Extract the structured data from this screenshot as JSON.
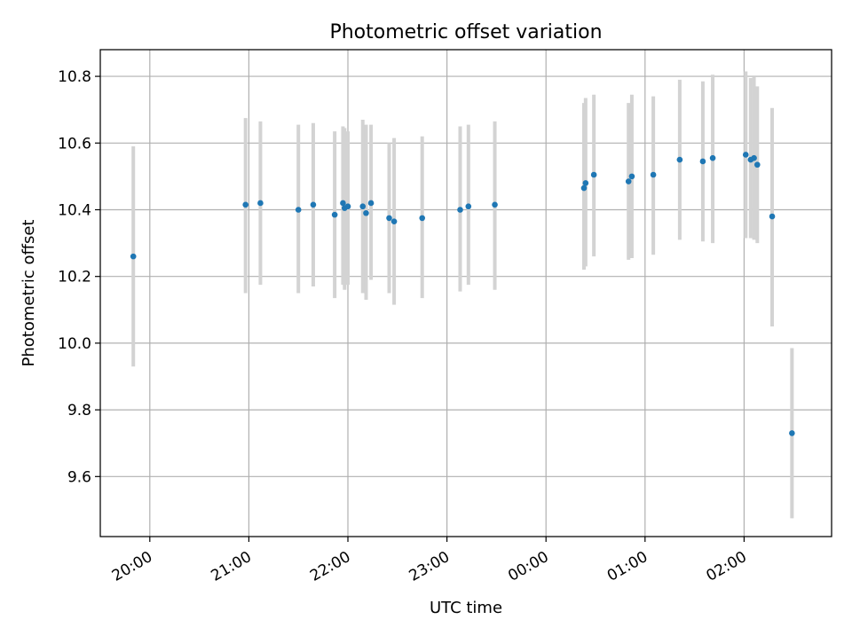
{
  "chart_data": {
    "type": "scatter",
    "title": "Photometric offset variation",
    "xlabel": "UTC time",
    "ylabel": "Photometric offset",
    "x_ticks": [
      "20:00",
      "21:00",
      "22:00",
      "23:00",
      "00:00",
      "01:00",
      "02:00"
    ],
    "y_ticks": [
      "9.6",
      "9.8",
      "10.0",
      "10.2",
      "10.4",
      "10.6",
      "10.8"
    ],
    "xlim": [
      "19:30",
      "02:53"
    ],
    "ylim": [
      9.42,
      10.88
    ],
    "grid": true,
    "x_unit": "hh:mm UTC",
    "colors": {
      "point": "#1f77b4",
      "errorbar": "#d3d3d3",
      "grid": "#b0b0b0"
    },
    "series": [
      {
        "points": [
          {
            "x": "19:50",
            "y": 10.26,
            "err_low": 9.93,
            "err_high": 10.59
          },
          {
            "x": "20:58",
            "y": 10.415,
            "err_low": 10.15,
            "err_high": 10.675
          },
          {
            "x": "21:07",
            "y": 10.42,
            "err_low": 10.175,
            "err_high": 10.665
          },
          {
            "x": "21:30",
            "y": 10.4,
            "err_low": 10.15,
            "err_high": 10.655
          },
          {
            "x": "21:39",
            "y": 10.415,
            "err_low": 10.17,
            "err_high": 10.66
          },
          {
            "x": "21:52",
            "y": 10.385,
            "err_low": 10.135,
            "err_high": 10.635
          },
          {
            "x": "21:57",
            "y": 10.42,
            "err_low": 10.175,
            "err_high": 10.65
          },
          {
            "x": "21:58",
            "y": 10.405,
            "err_low": 10.16,
            "err_high": 10.645
          },
          {
            "x": "22:00",
            "y": 10.41,
            "err_low": 10.175,
            "err_high": 10.635
          },
          {
            "x": "22:09",
            "y": 10.41,
            "err_low": 10.15,
            "err_high": 10.67
          },
          {
            "x": "22:11",
            "y": 10.39,
            "err_low": 10.13,
            "err_high": 10.655
          },
          {
            "x": "22:14",
            "y": 10.42,
            "err_low": 10.19,
            "err_high": 10.655
          },
          {
            "x": "22:25",
            "y": 10.375,
            "err_low": 10.15,
            "err_high": 10.6
          },
          {
            "x": "22:28",
            "y": 10.365,
            "err_low": 10.115,
            "err_high": 10.615
          },
          {
            "x": "22:45",
            "y": 10.375,
            "err_low": 10.135,
            "err_high": 10.62
          },
          {
            "x": "23:08",
            "y": 10.4,
            "err_low": 10.155,
            "err_high": 10.65
          },
          {
            "x": "23:13",
            "y": 10.41,
            "err_low": 10.175,
            "err_high": 10.655
          },
          {
            "x": "23:29",
            "y": 10.415,
            "err_low": 10.16,
            "err_high": 10.665
          },
          {
            "x": "00:23",
            "y": 10.465,
            "err_low": 10.22,
            "err_high": 10.72
          },
          {
            "x": "00:24",
            "y": 10.48,
            "err_low": 10.23,
            "err_high": 10.735
          },
          {
            "x": "00:29",
            "y": 10.505,
            "err_low": 10.26,
            "err_high": 10.745
          },
          {
            "x": "00:50",
            "y": 10.485,
            "err_low": 10.25,
            "err_high": 10.72
          },
          {
            "x": "00:52",
            "y": 10.5,
            "err_low": 10.255,
            "err_high": 10.745
          },
          {
            "x": "01:05",
            "y": 10.505,
            "err_low": 10.265,
            "err_high": 10.74
          },
          {
            "x": "01:21",
            "y": 10.55,
            "err_low": 10.31,
            "err_high": 10.79
          },
          {
            "x": "01:35",
            "y": 10.545,
            "err_low": 10.305,
            "err_high": 10.785
          },
          {
            "x": "01:41",
            "y": 10.555,
            "err_low": 10.3,
            "err_high": 10.805
          },
          {
            "x": "02:01",
            "y": 10.565,
            "err_low": 10.315,
            "err_high": 10.815
          },
          {
            "x": "02:04",
            "y": 10.55,
            "err_low": 10.315,
            "err_high": 10.795
          },
          {
            "x": "02:06",
            "y": 10.555,
            "err_low": 10.31,
            "err_high": 10.8
          },
          {
            "x": "02:08",
            "y": 10.535,
            "err_low": 10.3,
            "err_high": 10.77
          },
          {
            "x": "02:17",
            "y": 10.38,
            "err_low": 10.05,
            "err_high": 10.705
          },
          {
            "x": "02:29",
            "y": 9.73,
            "err_low": 9.475,
            "err_high": 9.985
          }
        ]
      }
    ]
  }
}
